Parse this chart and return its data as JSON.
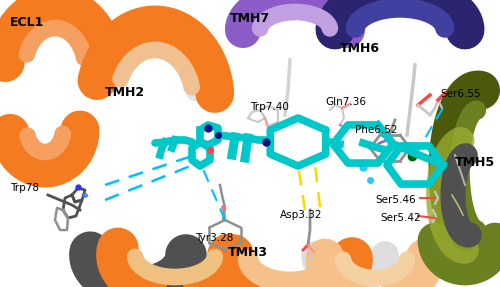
{
  "bg_color": "#ffffff",
  "orange": "#F47B20",
  "light_orange": "#F5C08A",
  "dark_gray": "#505050",
  "mid_gray": "#909090",
  "light_gray": "#C8C8C8",
  "purple": "#8B5CC8",
  "dark_purple": "#2B2570",
  "olive_dark": "#4A5A0A",
  "olive_mid": "#6B8020",
  "olive_light": "#9AAA30",
  "teal": "#00C8C8",
  "dark_teal": "#008888",
  "navy": "#101080",
  "red": "#FF4444",
  "pink_red": "#FF8888",
  "yellow": "#FFD700",
  "cyan_dash": "#00BFFF",
  "halogen_purple": "#9060C0",
  "green_dark": "#006400",
  "label_bold": [
    "ECL1",
    "TMH2",
    "TMH3",
    "TMH5",
    "TMH6",
    "TMH7"
  ],
  "label_normal": [
    "Trp78",
    "Trp7.40",
    "Gln7.36",
    "Phe6.52",
    "Ser6.55",
    "Asp3.32",
    "Tyr3.28",
    "Ser5.46",
    "Ser5.42"
  ]
}
